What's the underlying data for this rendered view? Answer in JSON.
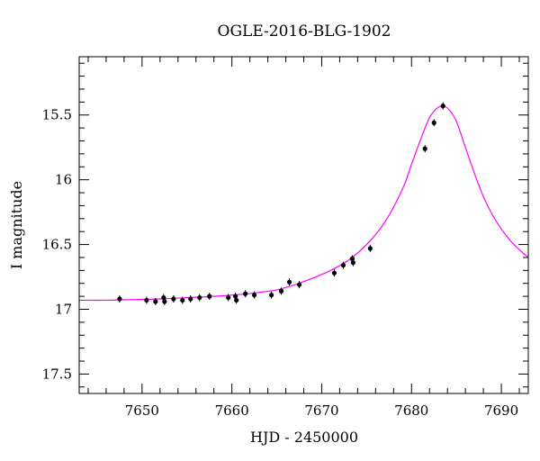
{
  "chart_data": {
    "type": "scatter",
    "title": "OGLE-2016-BLG-1902",
    "xlabel": "HJD - 2450000",
    "ylabel": "I magnitude",
    "xlim": [
      7643,
      7693
    ],
    "ylim": [
      17.65,
      15.05
    ],
    "y_inverted": true,
    "x_ticks": [
      7650,
      7660,
      7670,
      7680,
      7690
    ],
    "x_tick_labels": [
      "7650",
      "7660",
      "7670",
      "7680",
      "7690"
    ],
    "y_ticks": [
      15.5,
      16,
      16.5,
      17,
      17.5
    ],
    "y_tick_labels": [
      "15.5",
      "16",
      "16.5",
      "17",
      "17.5"
    ],
    "grid": false,
    "series": [
      {
        "kind": "points",
        "color": "#000000",
        "x": [
          7647.5,
          7650.5,
          7651.5,
          7652.4,
          7652.5,
          7653.5,
          7654.5,
          7655.4,
          7656.4,
          7657.5,
          7659.6,
          7660.4,
          7660.5,
          7661.5,
          7662.5,
          7664.4,
          7665.5,
          7666.4,
          7667.5,
          7671.4,
          7672.4,
          7673.4,
          7673.5,
          7675.4,
          7681.5,
          7682.5,
          7683.5
        ],
        "y": [
          16.92,
          16.93,
          16.94,
          16.91,
          16.94,
          16.92,
          16.93,
          16.92,
          16.91,
          16.9,
          16.91,
          16.9,
          16.93,
          16.88,
          16.89,
          16.89,
          16.86,
          16.79,
          16.81,
          16.72,
          16.66,
          16.61,
          16.64,
          16.53,
          15.76,
          15.56,
          15.43
        ]
      },
      {
        "kind": "model-curve",
        "color": "#ff00ff",
        "x": [
          7643,
          7646,
          7649,
          7652,
          7655,
          7658,
          7661,
          7663,
          7665,
          7667,
          7669,
          7671,
          7673,
          7675,
          7677,
          7679,
          7680,
          7681,
          7682,
          7682.8,
          7683.3,
          7683.7,
          7684.2,
          7685,
          7686,
          7687,
          7688,
          7689,
          7690,
          7691,
          7692,
          7693
        ],
        "y": [
          16.93,
          16.93,
          16.925,
          16.92,
          16.91,
          16.9,
          16.885,
          16.87,
          16.85,
          16.81,
          16.76,
          16.7,
          16.62,
          16.5,
          16.33,
          16.07,
          15.88,
          15.69,
          15.52,
          15.45,
          15.43,
          15.435,
          15.46,
          15.55,
          15.75,
          15.95,
          16.13,
          16.27,
          16.38,
          16.47,
          16.54,
          16.6
        ]
      }
    ]
  }
}
